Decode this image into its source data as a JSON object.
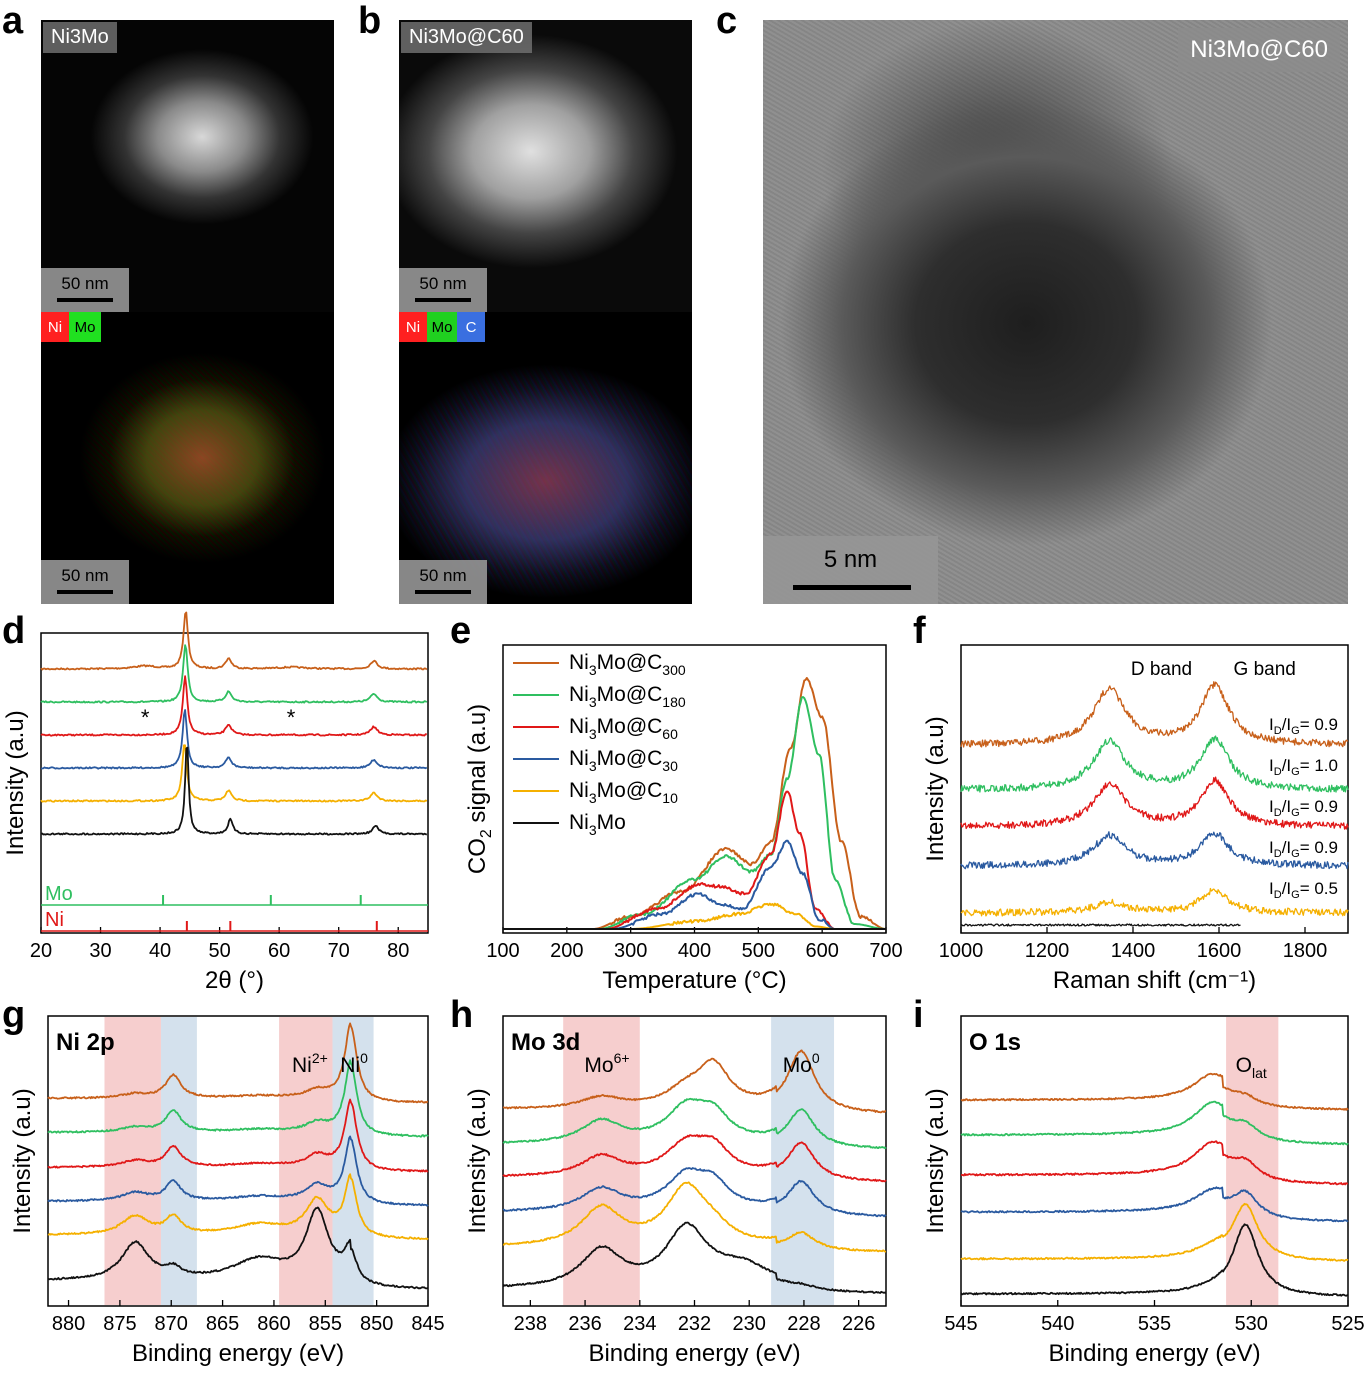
{
  "panels": {
    "a": {
      "letter": "a",
      "label": "Ni3Mo",
      "scale_top": "50 nm",
      "scale_bottom": "50 nm",
      "map_chips": [
        {
          "text": "Ni",
          "color": "#ff2020"
        },
        {
          "text": "Mo",
          "color": "#20e020"
        }
      ]
    },
    "b": {
      "letter": "b",
      "label": "Ni3Mo@C60",
      "scale_top": "50 nm",
      "scale_bottom": "50 nm",
      "map_chips": [
        {
          "text": "Ni",
          "color": "#ff2020"
        },
        {
          "text": "Mo",
          "color": "#20d020"
        },
        {
          "text": "C",
          "color": "#3a6fe0"
        }
      ]
    },
    "c": {
      "letter": "c",
      "label": "Ni3Mo@C60",
      "scale": "5 nm"
    },
    "d": {
      "letter": "d"
    },
    "e": {
      "letter": "e"
    },
    "f": {
      "letter": "f"
    },
    "g": {
      "letter": "g"
    },
    "h": {
      "letter": "h"
    },
    "i": {
      "letter": "i"
    }
  },
  "colors": {
    "C300": "#c8601a",
    "C180": "#2fbf60",
    "C60": "#e01818",
    "C30": "#2a5aa0",
    "C10": "#f5b000",
    "Ni3Mo": "#111111",
    "pink_band": "#f5c6c6",
    "blue_band": "#cddcea"
  },
  "chart_data": [
    {
      "panel": "d",
      "type": "line",
      "xlabel": "2θ (°)",
      "ylabel": "Intensity (a.u)",
      "xlim": [
        20,
        85
      ],
      "xticks": [
        20,
        30,
        40,
        50,
        60,
        70,
        80
      ],
      "peaks": [
        44.3,
        51.5,
        75.9
      ],
      "offsets": [
        0.88,
        0.77,
        0.66,
        0.55,
        0.44,
        0.33
      ],
      "series": [
        "C300",
        "C180",
        "C60",
        "C30",
        "C10",
        "Ni3Mo"
      ],
      "asterisks": [
        {
          "text": "*",
          "x": 37.5
        },
        {
          "text": "*",
          "x": 62
        }
      ],
      "reference": [
        {
          "name": "Mo",
          "color": "#2fbf60",
          "lines": [
            40.5,
            58.6,
            73.7
          ]
        },
        {
          "name": "Ni",
          "color": "#e01818",
          "lines": [
            44.5,
            51.8,
            76.4
          ]
        }
      ]
    },
    {
      "panel": "e",
      "type": "line",
      "xlabel": "Temperature (°C)",
      "ylabel": "CO2 signal (a.u)",
      "xlim": [
        100,
        700
      ],
      "xticks": [
        100,
        200,
        300,
        400,
        500,
        600,
        700
      ],
      "legend": [
        {
          "key": "C300",
          "text": "Ni3Mo@C",
          "sub": "300"
        },
        {
          "key": "C180",
          "text": "Ni3Mo@C",
          "sub": "180"
        },
        {
          "key": "C60",
          "text": "Ni3Mo@C",
          "sub": "60"
        },
        {
          "key": "C30",
          "text": "Ni3Mo@C",
          "sub": "30"
        },
        {
          "key": "C10",
          "text": "Ni3Mo@C",
          "sub": "10"
        },
        {
          "key": "Ni3Mo",
          "text": "Ni3Mo",
          "sub": ""
        }
      ],
      "curves": {
        "C300": [
          [
            240,
            0
          ],
          [
            300,
            0.05
          ],
          [
            380,
            0.15
          ],
          [
            450,
            0.32
          ],
          [
            490,
            0.26
          ],
          [
            520,
            0.35
          ],
          [
            550,
            0.72
          ],
          [
            575,
            1.0
          ],
          [
            600,
            0.85
          ],
          [
            630,
            0.35
          ],
          [
            660,
            0.05
          ],
          [
            700,
            0
          ]
        ],
        "C180": [
          [
            250,
            0
          ],
          [
            320,
            0.06
          ],
          [
            400,
            0.2
          ],
          [
            450,
            0.29
          ],
          [
            490,
            0.23
          ],
          [
            520,
            0.3
          ],
          [
            545,
            0.6
          ],
          [
            570,
            0.93
          ],
          [
            595,
            0.7
          ],
          [
            620,
            0.2
          ],
          [
            650,
            0.02
          ],
          [
            700,
            0
          ]
        ],
        "C60": [
          [
            260,
            0
          ],
          [
            340,
            0.08
          ],
          [
            410,
            0.18
          ],
          [
            440,
            0.17
          ],
          [
            480,
            0.14
          ],
          [
            520,
            0.3
          ],
          [
            545,
            0.55
          ],
          [
            565,
            0.38
          ],
          [
            590,
            0.08
          ],
          [
            620,
            0
          ],
          [
            700,
            0
          ]
        ],
        "C30": [
          [
            270,
            0
          ],
          [
            350,
            0.06
          ],
          [
            405,
            0.14
          ],
          [
            440,
            0.1
          ],
          [
            475,
            0.08
          ],
          [
            520,
            0.25
          ],
          [
            545,
            0.35
          ],
          [
            570,
            0.22
          ],
          [
            595,
            0.04
          ],
          [
            620,
            0
          ],
          [
            700,
            0
          ]
        ],
        "C10": [
          [
            300,
            0
          ],
          [
            400,
            0.03
          ],
          [
            470,
            0.06
          ],
          [
            520,
            0.1
          ],
          [
            560,
            0.06
          ],
          [
            590,
            0.01
          ],
          [
            620,
            0
          ],
          [
            700,
            0
          ]
        ],
        "Ni3Mo": [
          [
            100,
            0
          ],
          [
            700,
            0
          ]
        ]
      }
    },
    {
      "panel": "f",
      "type": "line",
      "xlabel": "Raman shift (cm⁻¹)",
      "ylabel": "Intensity (a.u)",
      "xlim": [
        1000,
        1900
      ],
      "xticks": [
        1000,
        1200,
        1400,
        1600,
        1800
      ],
      "band_labels": [
        {
          "text": "D band",
          "x": 1350
        },
        {
          "text": "G band",
          "x": 1590
        }
      ],
      "ratios": [
        "0.9",
        "1.0",
        "0.9",
        "0.9",
        "0.5"
      ],
      "series": [
        "C300",
        "C180",
        "C60",
        "C30",
        "C10",
        "Ni3Mo"
      ]
    },
    {
      "panel": "g",
      "type": "line",
      "title": "Ni 2p",
      "xlabel": "Binding energy (eV)",
      "ylabel": "Intensity (a.u)",
      "xlim": [
        882,
        845
      ],
      "xticks": [
        880,
        875,
        870,
        865,
        860,
        855,
        850,
        845
      ],
      "bands": [
        {
          "from": 876.5,
          "to": 871,
          "c": "pink_band"
        },
        {
          "from": 871,
          "to": 867.5,
          "c": "blue_band"
        },
        {
          "from": 859.5,
          "to": 854.3,
          "c": "pink_band"
        },
        {
          "from": 854.3,
          "to": 850.3,
          "c": "blue_band"
        }
      ],
      "annotations": [
        {
          "text": "Ni",
          "sup": "2+",
          "x": 856.5
        },
        {
          "text": "Ni",
          "sup": "0",
          "x": 852.2
        }
      ],
      "series": [
        "C300",
        "C180",
        "C60",
        "C30",
        "C10",
        "Ni3Mo"
      ]
    },
    {
      "panel": "h",
      "type": "line",
      "title": "Mo 3d",
      "xlabel": "Binding energy (eV)",
      "ylabel": "Intensity (a.u)",
      "xlim": [
        239,
        225
      ],
      "xticks": [
        238,
        236,
        234,
        232,
        230,
        228,
        226
      ],
      "bands": [
        {
          "from": 236.8,
          "to": 234,
          "c": "pink_band"
        },
        {
          "from": 229.2,
          "to": 226.9,
          "c": "blue_band"
        }
      ],
      "annotations": [
        {
          "text": "Mo",
          "sup": "6+",
          "x": 235.2
        },
        {
          "text": "Mo",
          "sup": "0",
          "x": 228.1
        }
      ],
      "series": [
        "C300",
        "C180",
        "C60",
        "C30",
        "C10",
        "Ni3Mo"
      ]
    },
    {
      "panel": "i",
      "type": "line",
      "title": "O 1s",
      "xlabel": "Binding energy (eV)",
      "ylabel": "Intensity (a.u)",
      "xlim": [
        545,
        525
      ],
      "xticks": [
        545,
        540,
        535,
        530,
        525
      ],
      "bands": [
        {
          "from": 531.3,
          "to": 528.6,
          "c": "pink_band"
        }
      ],
      "annotations": [
        {
          "text": "O",
          "sub": "lat",
          "x": 530
        }
      ],
      "series": [
        "C300",
        "C180",
        "C60",
        "C30",
        "C10",
        "Ni3Mo"
      ]
    }
  ]
}
